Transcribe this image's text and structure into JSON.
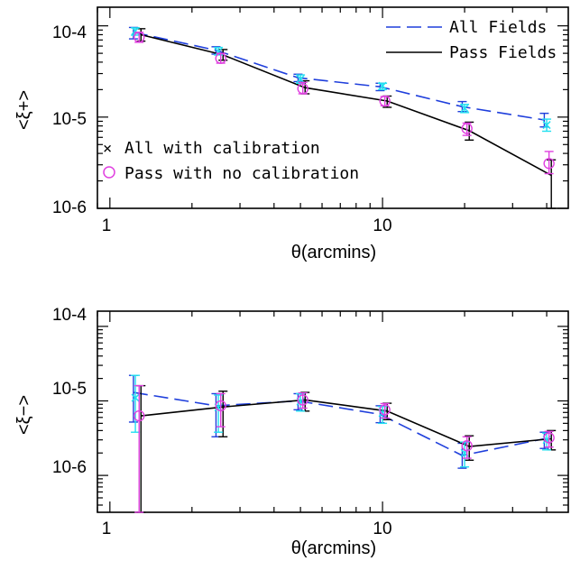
{
  "colors": {
    "all_fields": "#1f3fdc",
    "pass_fields": "#000000",
    "all_calib": "#22e0f0",
    "pass_nocalib": "#e040e0"
  },
  "legend": {
    "all_fields": "All Fields",
    "pass_fields": "Pass Fields",
    "all_calib": "All with calibration",
    "pass_nocalib": "Pass with no calibration",
    "all_calib_marker": "×"
  },
  "chart_data": [
    {
      "type": "line",
      "xscale": "log",
      "yscale": "log",
      "xlim": [
        0.9,
        48
      ],
      "ylim": [
        1e-06,
        0.00016
      ],
      "xlabel": "θ(arcmins)",
      "ylabel": "<ξ+>",
      "xticklabels": [
        "1",
        "10"
      ],
      "yticklabels": [
        "10-6",
        "10-5",
        "10-4"
      ],
      "legend_position": "top-right",
      "series": [
        {
          "name": "All Fields",
          "style": "dashed",
          "x": [
            1.22,
            2.45,
            4.9,
            9.8,
            19.6,
            39.2
          ],
          "y": [
            8.5e-05,
            5.4e-05,
            2.7e-05,
            2.15e-05,
            1.3e-05,
            9.3e-06
          ],
          "lo": [
            7.2e-05,
            4.9e-05,
            2.45e-05,
            1.95e-05,
            1.15e-05,
            7.8e-06
          ],
          "hi": [
            9.6e-05,
            5.9e-05,
            2.95e-05,
            2.35e-05,
            1.48e-05,
            1.1e-05
          ]
        },
        {
          "name": "Pass Fields",
          "style": "solid",
          "x": [
            1.3,
            2.6,
            5.2,
            10.4,
            20.8,
            41.6
          ],
          "y": [
            8e-05,
            4.8e-05,
            2.1e-05,
            1.5e-05,
            7.1e-06,
            2.3e-06
          ],
          "lo": [
            6.8e-05,
            4.2e-05,
            1.8e-05,
            1.28e-05,
            5.6e-06,
            1e-06
          ],
          "hi": [
            9.3e-05,
            5.5e-05,
            2.5e-05,
            1.7e-05,
            8.8e-06,
            3.4e-06
          ]
        },
        {
          "name": "All with calibration",
          "style": "marker-x",
          "x": [
            1.24,
            2.5,
            5.0,
            10.0,
            20.0,
            40.0
          ],
          "y": [
            8.8e-05,
            5.2e-05,
            2.6e-05,
            2.2e-05,
            1.25e-05,
            8.2e-06
          ],
          "lo": [
            7.9e-05,
            4.8e-05,
            2.35e-05,
            2e-05,
            1.12e-05,
            7e-06
          ],
          "hi": [
            9.5e-05,
            5.8e-05,
            2.9e-05,
            2.35e-05,
            1.38e-05,
            9.5e-06
          ]
        },
        {
          "name": "Pass with no calibration",
          "style": "marker-o",
          "x": [
            1.28,
            2.55,
            5.1,
            10.2,
            20.4,
            40.8
          ],
          "y": [
            7.5e-05,
            4.4e-05,
            2.05e-05,
            1.5e-05,
            7.5e-06,
            3.1e-06
          ],
          "lo": [
            6.6e-05,
            3.9e-05,
            1.8e-05,
            1.33e-05,
            6.3e-06,
            2.4e-06
          ],
          "hi": [
            8.5e-05,
            5e-05,
            2.4e-05,
            1.68e-05,
            8.6e-06,
            4.2e-06
          ]
        }
      ]
    },
    {
      "type": "line",
      "xscale": "log",
      "yscale": "log",
      "xlim": [
        0.9,
        48
      ],
      "ylim": [
        3.2e-07,
        0.00016
      ],
      "xlabel": "θ(arcmins)",
      "ylabel": "<ξ−>",
      "xticklabels": [
        "1",
        "10"
      ],
      "yticklabels": [
        "10-6",
        "10-5",
        "10-4"
      ],
      "series": [
        {
          "name": "All Fields",
          "style": "dashed",
          "x": [
            1.22,
            2.45,
            4.9,
            9.8,
            19.6,
            39.2
          ],
          "y": [
            1.3e-05,
            8.6e-06,
            1e-05,
            6.6e-06,
            1.85e-06,
            3.1e-06
          ],
          "lo": [
            5.2e-06,
            3.3e-06,
            7.6e-06,
            5.1e-06,
            1.25e-06,
            2.3e-06
          ],
          "hi": [
            2.2e-05,
            1.25e-05,
            1.25e-05,
            8.6e-06,
            2.7e-06,
            3.8e-06
          ]
        },
        {
          "name": "Pass Fields",
          "style": "solid",
          "x": [
            1.3,
            2.6,
            5.2,
            10.4,
            20.8,
            41.6
          ],
          "y": [
            6.3e-06,
            8.3e-06,
            1.03e-05,
            7.3e-06,
            2.45e-06,
            3.1e-06
          ],
          "lo": [
            3.2e-07,
            3.3e-06,
            7.3e-06,
            5.6e-06,
            1.6e-06,
            2.2e-06
          ],
          "hi": [
            1.6e-05,
            1.35e-05,
            1.3e-05,
            9.3e-06,
            3.4e-06,
            4e-06
          ]
        },
        {
          "name": "All with calibration",
          "style": "marker-x",
          "x": [
            1.24,
            2.5,
            5.0,
            10.0,
            20.0,
            40.0
          ],
          "y": [
            1.1e-05,
            8.2e-06,
            9.8e-06,
            6.9e-06,
            2e-06,
            3e-06
          ],
          "lo": [
            3.8e-06,
            3.8e-06,
            7.3e-06,
            5e-06,
            1.3e-06,
            2.2e-06
          ],
          "hi": [
            2.2e-05,
            1.2e-05,
            1.25e-05,
            8.4e-06,
            2.8e-06,
            3.7e-06
          ]
        },
        {
          "name": "Pass with no calibration",
          "style": "marker-o",
          "x": [
            1.28,
            2.55,
            5.1,
            10.2,
            20.4,
            40.8
          ],
          "y": [
            6.3e-06,
            8.6e-06,
            1.03e-05,
            7.6e-06,
            2.5e-06,
            3.2e-06
          ],
          "lo": [
            3.2e-07,
            4.5e-06,
            8e-06,
            5.9e-06,
            1.7e-06,
            2.4e-06
          ],
          "hi": [
            1.6e-05,
            1.25e-05,
            1.28e-05,
            9.2e-06,
            3.3e-06,
            3.9e-06
          ]
        }
      ]
    }
  ]
}
